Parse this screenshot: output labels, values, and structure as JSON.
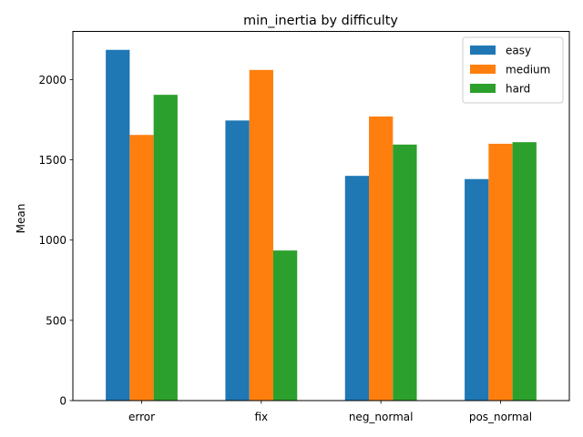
{
  "chart_data": {
    "type": "bar",
    "title": "min_inertia by difficulty",
    "xlabel": "",
    "ylabel": "Mean",
    "categories": [
      "error",
      "fix",
      "neg_normal",
      "pos_normal"
    ],
    "series": [
      {
        "name": "easy",
        "color": "#1f77b4",
        "values": [
          2185,
          1745,
          1400,
          1380
        ]
      },
      {
        "name": "medium",
        "color": "#ff7f0e",
        "values": [
          1655,
          2060,
          1770,
          1600
        ]
      },
      {
        "name": "hard",
        "color": "#2ca02c",
        "values": [
          1905,
          935,
          1595,
          1610
        ]
      }
    ],
    "ylim": [
      0,
      2300
    ],
    "yticks": [
      0,
      500,
      1000,
      1500,
      2000
    ],
    "grid": false,
    "legend_position": "top-right"
  }
}
